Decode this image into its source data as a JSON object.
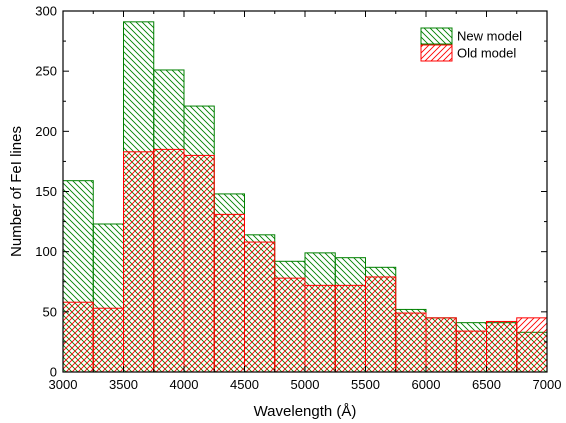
{
  "chart_data": {
    "type": "bar",
    "title": "",
    "xlabel": "Wavelength (Å)",
    "ylabel": "Number of FeI lines",
    "xlim": [
      3000,
      7000
    ],
    "ylim": [
      0,
      300
    ],
    "bin_width": 250,
    "bins": [
      3000,
      3250,
      3500,
      3750,
      4000,
      4250,
      4500,
      4750,
      5000,
      5250,
      5500,
      5750,
      6000,
      6250,
      6500,
      6750
    ],
    "x_ticks": [
      3000,
      3500,
      4000,
      4500,
      5000,
      5500,
      6000,
      6500,
      7000
    ],
    "y_ticks": [
      0,
      50,
      100,
      150,
      200,
      250,
      300
    ],
    "legend_position": "top-right",
    "grid": false,
    "series": [
      {
        "name": "New model",
        "color": "#008000",
        "hatch": "diagonal-down",
        "values": [
          159,
          123,
          291,
          251,
          221,
          148,
          114,
          92,
          99,
          95,
          87,
          52,
          45,
          41,
          41,
          33
        ]
      },
      {
        "name": "Old model",
        "color": "#ff0000",
        "hatch": "diagonal-up",
        "values": [
          58,
          53,
          183,
          185,
          180,
          131,
          108,
          78,
          72,
          72,
          79,
          49,
          45,
          34,
          42,
          45
        ]
      }
    ]
  }
}
